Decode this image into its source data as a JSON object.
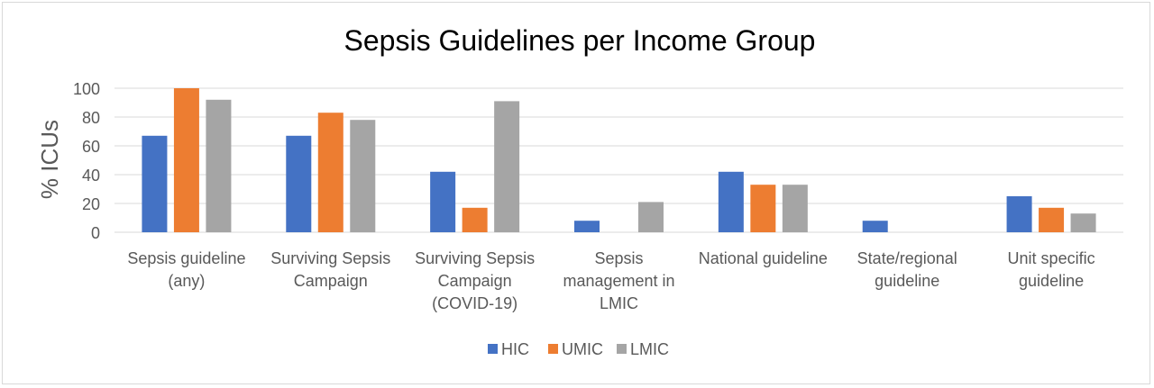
{
  "chart_data": {
    "type": "bar",
    "title": "Sepsis Guidelines per Income Group",
    "ylabel": "% ICUs",
    "xlabel": "",
    "ylim": [
      0,
      100
    ],
    "yticks": [
      0,
      20,
      40,
      60,
      80,
      100
    ],
    "grid": true,
    "legend_position": "bottom",
    "categories": [
      [
        "Sepsis guideline",
        "(any)"
      ],
      [
        "Surviving Sepsis",
        "Campaign"
      ],
      [
        "Surviving Sepsis",
        "Campaign",
        "(COVID-19)"
      ],
      [
        "Sepsis",
        "management in",
        "LMIC"
      ],
      [
        "National guideline"
      ],
      [
        "State/regional",
        "guideline"
      ],
      [
        "Unit specific",
        "guideline"
      ]
    ],
    "series": [
      {
        "name": "HIC",
        "color": "#4472c4",
        "values": [
          67,
          67,
          42,
          8,
          42,
          8,
          25
        ]
      },
      {
        "name": "UMIC",
        "color": "#ed7d31",
        "values": [
          100,
          83,
          17,
          0,
          33,
          0,
          17
        ]
      },
      {
        "name": "LMIC",
        "color": "#a5a5a5",
        "values": [
          92,
          78,
          91,
          21,
          33,
          0,
          13
        ]
      }
    ]
  }
}
